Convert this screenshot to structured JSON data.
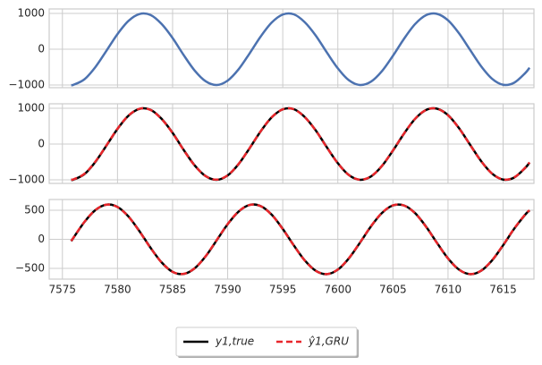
{
  "chart_data": [
    {
      "type": "line",
      "x": [
        7575.8,
        7576,
        7577,
        7578,
        7579,
        7580,
        7581,
        7582,
        7583,
        7584,
        7585,
        7586,
        7587,
        7588,
        7589,
        7590,
        7591,
        7592,
        7593,
        7594,
        7595,
        7596,
        7597,
        7598,
        7599,
        7600,
        7601,
        7602,
        7603,
        7604,
        7605,
        7606,
        7607,
        7608,
        7609,
        7610,
        7611,
        7612,
        7613,
        7614,
        7615,
        7616,
        7617,
        7617.4
      ],
      "series": [
        {
          "color": "#4c72b0",
          "values": [
            -1000,
            -995,
            -840,
            -496,
            -42,
            423,
            792,
            983,
            956,
            705,
            312,
            -161,
            -595,
            -896,
            -1000,
            -877,
            -558,
            -113,
            356,
            746,
            969,
            975,
            754,
            379,
            -90,
            -535,
            -865,
            -999,
            -909,
            -615,
            -184,
            288,
            698,
            950,
            988,
            807,
            443,
            -18,
            -475,
            -826,
            -993,
            -937,
            -670,
            -517
          ]
        }
      ],
      "xlim": [
        7573.8,
        7617.8
      ],
      "ylim": [
        -1075,
        1125
      ],
      "xticks": [
        7575,
        7580,
        7585,
        7590,
        7595,
        7600,
        7605,
        7610,
        7615
      ],
      "xtick_labels": false,
      "yticks": [
        {
          "value": -1000,
          "label": "−1000"
        },
        0,
        1000
      ],
      "grid": true
    },
    {
      "type": "line",
      "x": [
        7575.8,
        7576,
        7577,
        7578,
        7579,
        7580,
        7581,
        7582,
        7583,
        7584,
        7585,
        7586,
        7587,
        7588,
        7589,
        7590,
        7591,
        7592,
        7593,
        7594,
        7595,
        7596,
        7597,
        7598,
        7599,
        7600,
        7601,
        7602,
        7603,
        7604,
        7605,
        7606,
        7607,
        7608,
        7609,
        7610,
        7611,
        7612,
        7613,
        7614,
        7615,
        7616,
        7617,
        7617.4
      ],
      "series": [
        {
          "name": "y1,true",
          "color": "#000000",
          "dash": false,
          "values": [
            -1000,
            -995,
            -840,
            -496,
            -42,
            423,
            792,
            983,
            956,
            705,
            312,
            -161,
            -595,
            -896,
            -1000,
            -877,
            -558,
            -113,
            356,
            746,
            969,
            975,
            754,
            379,
            -90,
            -535,
            -865,
            -999,
            -909,
            -615,
            -184,
            288,
            698,
            950,
            988,
            807,
            443,
            -18,
            -475,
            -826,
            -993,
            -937,
            -670,
            -517
          ]
        },
        {
          "name": "ŷ1,GRU",
          "color": "#e8262b",
          "dash": true,
          "values": [
            -990,
            -988,
            -832,
            -488,
            -36,
            428,
            796,
            985,
            952,
            700,
            306,
            -166,
            -598,
            -895,
            -995,
            -872,
            -552,
            -108,
            360,
            750,
            970,
            972,
            750,
            374,
            -95,
            -538,
            -866,
            -996,
            -905,
            -610,
            -178,
            293,
            702,
            952,
            986,
            803,
            438,
            -22,
            -478,
            -827,
            -990,
            -932,
            -664,
            -512
          ]
        }
      ],
      "legend": "lower center",
      "xlim": [
        7573.8,
        7617.8
      ],
      "ylim": [
        -1100,
        1125
      ],
      "xticks": [
        7575,
        7580,
        7585,
        7590,
        7595,
        7600,
        7605,
        7610,
        7615
      ],
      "xtick_labels": false,
      "yticks": [
        {
          "value": -1000,
          "label": "−1000"
        },
        0,
        1000
      ],
      "grid": true
    },
    {
      "type": "line",
      "x": [
        7575.8,
        7576,
        7577,
        7578,
        7579,
        7580,
        7581,
        7582,
        7583,
        7584,
        7585,
        7586,
        7587,
        7588,
        7589,
        7590,
        7591,
        7592,
        7593,
        7594,
        7595,
        7596,
        7597,
        7598,
        7599,
        7600,
        7601,
        7602,
        7603,
        7604,
        7605,
        7606,
        7607,
        7608,
        7609,
        7610,
        7611,
        7612,
        7613,
        7614,
        7615,
        7616,
        7617,
        7617.4
      ],
      "series": [
        {
          "color": "#000000",
          "dash": false,
          "values": [
            -32,
            25,
            298,
            504,
            597,
            557,
            392,
            138,
            -145,
            -396,
            -559,
            -596,
            -500,
            -293,
            -18,
            260,
            479,
            592,
            571,
            423,
            179,
            -103,
            -363,
            -542,
            -600,
            -522,
            -328,
            -61,
            220,
            452,
            583,
            583,
            453,
            220,
            -61,
            -328,
            -522,
            -600,
            -542,
            -363,
            -103,
            180,
            423,
            496
          ]
        },
        {
          "color": "#e8262b",
          "dash": true,
          "values": [
            -28,
            28,
            300,
            505,
            596,
            555,
            389,
            134,
            -149,
            -399,
            -560,
            -595,
            -498,
            -290,
            -14,
            263,
            481,
            592,
            569,
            420,
            175,
            -107,
            -366,
            -543,
            -598,
            -519,
            -324,
            -57,
            224,
            455,
            584,
            581,
            450,
            216,
            -65,
            -331,
            -523,
            -598,
            -539,
            -359,
            -99,
            184,
            426,
            500
          ]
        }
      ],
      "xlim": [
        7573.8,
        7617.8
      ],
      "ylim": [
        -685,
        685
      ],
      "xticks": [
        7575,
        7580,
        7585,
        7590,
        7595,
        7600,
        7605,
        7610,
        7615
      ],
      "xtick_labels": true,
      "yticks": [
        {
          "value": -500,
          "label": "−500"
        },
        0,
        500
      ],
      "grid": true
    }
  ]
}
